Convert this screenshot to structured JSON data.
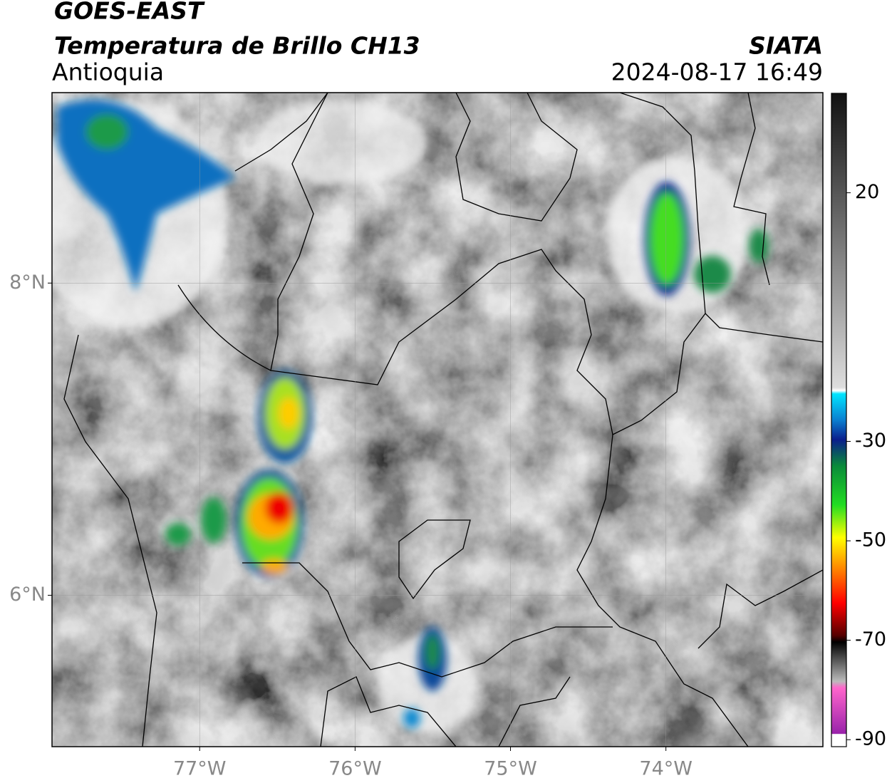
{
  "header": {
    "title": "GOES-EAST",
    "subtitle": "Temperatura de Brillo CH13",
    "region": "Antioquia",
    "source": "SIATA",
    "timestamp": "2024-08-17 16:49"
  },
  "map": {
    "xlim": [
      -77.95,
      -72.99
    ],
    "ylim": [
      5.03,
      9.22
    ],
    "xticks": [
      {
        "value": -77,
        "label": "77°W"
      },
      {
        "value": -76,
        "label": "76°W"
      },
      {
        "value": -75,
        "label": "75°W"
      },
      {
        "value": -74,
        "label": "74°W"
      }
    ],
    "yticks": [
      {
        "value": 8,
        "label": "8°N"
      },
      {
        "value": 6,
        "label": "6°N"
      }
    ]
  },
  "colorbar": {
    "lim": [
      -91.4,
      40
    ],
    "ticks": [
      20,
      -30,
      -50,
      -70,
      -90
    ]
  }
}
